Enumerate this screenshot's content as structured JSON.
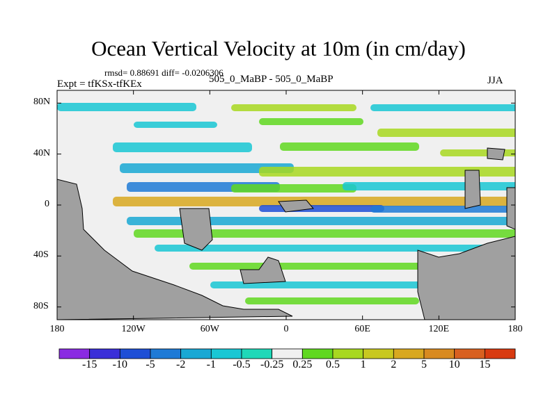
{
  "title": "Ocean Vertical Velocity at 10m (in cm/day)",
  "stats_line": "rmsd= 0.88691 diff= -0.0206306",
  "expt_line": "Expt = tfKSx-tfKEx",
  "case_line": "505_0_MaBP - 505_0_MaBP",
  "season": "JJA",
  "colors": {
    "land": "#a0a0a0",
    "levels": [
      "#8a2be2",
      "#3b2fd8",
      "#1e4fd6",
      "#1e7ad6",
      "#19a8d4",
      "#19c7d4",
      "#1fd8b8",
      "#f0f0f0",
      "#60d820",
      "#a8d820",
      "#c8c820",
      "#d8a820",
      "#d88a20",
      "#d86020",
      "#d83a10"
    ]
  },
  "chart_data": {
    "type": "heatmap",
    "title": "Ocean Vertical Velocity at 10m (in cm/day)",
    "x_ticks": [
      "180",
      "120W",
      "60W",
      "0",
      "60E",
      "120E",
      "180"
    ],
    "x_range": [
      -180,
      180
    ],
    "y_ticks": [
      "80N",
      "40N",
      "0",
      "40S",
      "80S"
    ],
    "y_range": [
      -90,
      90
    ],
    "colorbar_labels": [
      "-15",
      "-10",
      "-5",
      "-2",
      "-1",
      "-0.5",
      "-0.25",
      "0.25",
      "0.5",
      "1",
      "2",
      "5",
      "10",
      "15"
    ]
  }
}
